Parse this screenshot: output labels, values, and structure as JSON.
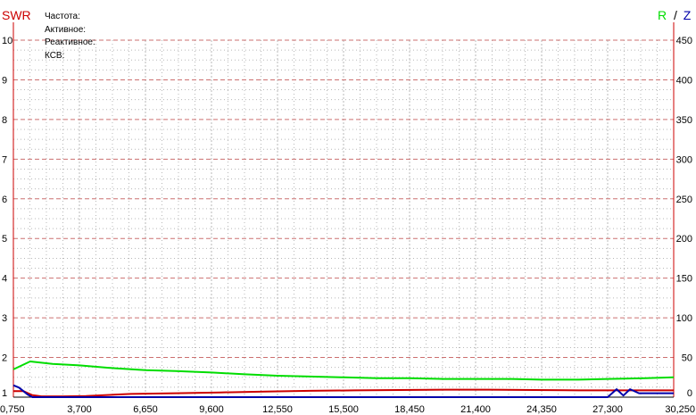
{
  "header": {
    "left_title": "SWR",
    "right_title_r": "R",
    "right_title_sep": "/",
    "right_title_z": "Z"
  },
  "info_panel": {
    "frequency_label": "Частота:",
    "active_label": "Активное:",
    "reactive_label": "Реактивное:",
    "swr_label": "КСВ:"
  },
  "colors": {
    "swr": "#cc0000",
    "r": "#00dd00",
    "z": "#0000aa",
    "axis": "#cc0000",
    "major_grid": "#cc7070",
    "minor_grid": "#b8b8b8"
  },
  "chart_data": {
    "type": "line",
    "x_ticks": [
      "0,750",
      "3,700",
      "6,650",
      "9,600",
      "12,550",
      "15,500",
      "18,450",
      "21,400",
      "24,350",
      "27,300",
      "30,250"
    ],
    "xlim": [
      0.75,
      30.25
    ],
    "left_axis": {
      "label": "SWR",
      "ylim": [
        1,
        10
      ],
      "ticks": [
        "1",
        "2",
        "3",
        "4",
        "5",
        "6",
        "7",
        "8",
        "9",
        "10"
      ]
    },
    "right_axis": {
      "label": "R / Z",
      "ylim": [
        0,
        450
      ],
      "ticks": [
        "0",
        "50",
        "100",
        "150",
        "200",
        "250",
        "300",
        "350",
        "400",
        "450"
      ]
    },
    "series": [
      {
        "name": "SWR",
        "axis": "left",
        "x": [
          0.75,
          1.2,
          1.6,
          2.0,
          3.0,
          4.0,
          6.0,
          8.0,
          10.0,
          12.0,
          14.0,
          16.0,
          18.0,
          20.0,
          22.0,
          24.0,
          26.0,
          28.0,
          30.25
        ],
        "y": [
          1.15,
          1.15,
          1.05,
          1.02,
          1.02,
          1.03,
          1.08,
          1.1,
          1.12,
          1.14,
          1.16,
          1.17,
          1.18,
          1.19,
          1.19,
          1.18,
          1.17,
          1.17,
          1.17
        ]
      },
      {
        "name": "R",
        "axis": "right",
        "x": [
          0.75,
          1.5,
          2.5,
          3.7,
          5.0,
          6.65,
          8.0,
          9.6,
          11.0,
          12.55,
          14.0,
          15.5,
          17.0,
          18.45,
          20.0,
          21.4,
          23.0,
          24.35,
          26.0,
          27.3,
          29.0,
          30.25
        ],
        "y": [
          35,
          45,
          42,
          40,
          37,
          34,
          33,
          31,
          29,
          27,
          26,
          25,
          24,
          24,
          23,
          23,
          23,
          22,
          22,
          23,
          24,
          25
        ]
      },
      {
        "name": "Z",
        "axis": "right",
        "x": [
          0.75,
          1.0,
          1.4,
          1.6,
          2.0,
          10.0,
          20.0,
          27.0,
          27.3,
          27.7,
          28.0,
          28.3,
          28.7,
          29.5,
          30.25
        ],
        "y": [
          15,
          12,
          3,
          0,
          0,
          0,
          0,
          0,
          0,
          10,
          2,
          10,
          5,
          5,
          5
        ]
      }
    ],
    "grid": true
  }
}
